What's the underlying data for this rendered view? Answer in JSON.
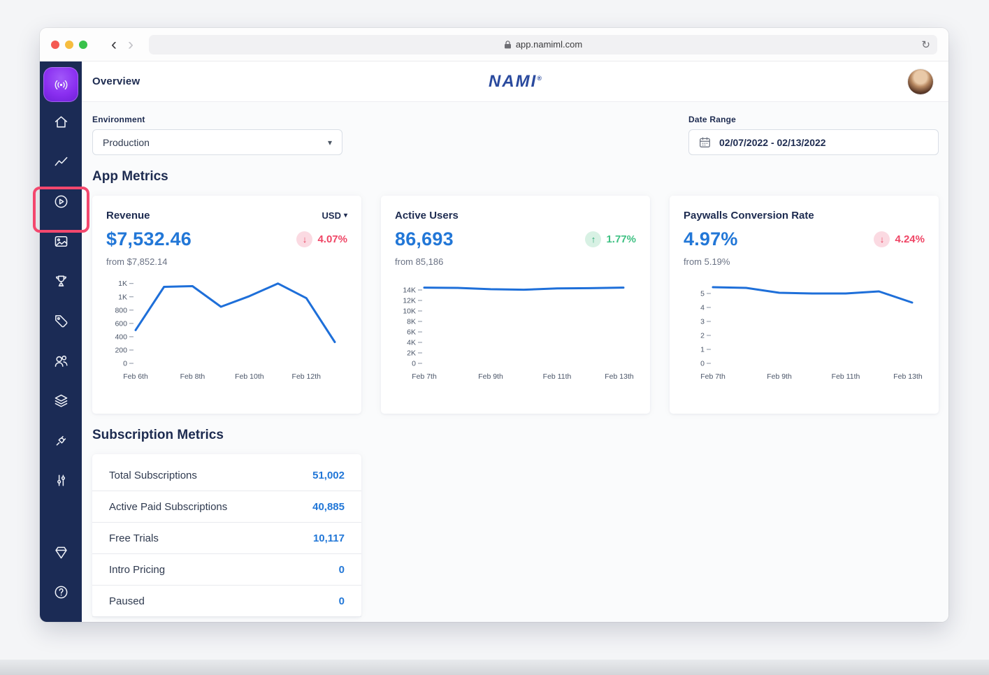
{
  "browser": {
    "url": "app.namiml.com"
  },
  "glyphs": {
    "back": "‹",
    "forward": "›",
    "reload": "↻",
    "caret": "▾",
    "down": "↓",
    "up": "↑"
  },
  "header": {
    "page_title": "Overview",
    "logo_text": "NAMI",
    "logo_reg": "®"
  },
  "filters": {
    "environment": {
      "label": "Environment",
      "value": "Production"
    },
    "date_range": {
      "label": "Date Range",
      "value": "02/07/2022  -  02/13/2022"
    }
  },
  "app_metrics": {
    "title": "App Metrics",
    "cards": [
      {
        "title": "Revenue",
        "currency": "USD",
        "value": "$7,532.46",
        "delta": "4.07%",
        "direction": "down",
        "baseline": "from $7,852.14"
      },
      {
        "title": "Active Users",
        "value": "86,693",
        "delta": "1.77%",
        "direction": "up",
        "baseline": "from 85,186"
      },
      {
        "title": "Paywalls Conversion Rate",
        "value": "4.97%",
        "delta": "4.24%",
        "direction": "down",
        "baseline": "from 5.19%"
      }
    ]
  },
  "subscription_metrics": {
    "title": "Subscription Metrics",
    "rows": [
      {
        "label": "Total Subscriptions",
        "value": "51,002"
      },
      {
        "label": "Active Paid Subscriptions",
        "value": "40,885"
      },
      {
        "label": "Free Trials",
        "value": "10,117"
      },
      {
        "label": "Intro Pricing",
        "value": "0"
      },
      {
        "label": "Paused",
        "value": "0"
      }
    ]
  },
  "sidebar": {
    "icons": [
      "app-logo-broadcast",
      "home",
      "analytics",
      "play-circle",
      "image",
      "trophy",
      "tag",
      "users",
      "layers",
      "plug",
      "sliders",
      "package",
      "help"
    ]
  },
  "colors": {
    "accent_blue": "#2277d7",
    "negative": "#ef4565",
    "positive": "#3fc183",
    "sidebar_navy": "#1b2b55",
    "annotation_pink": "#f3486e",
    "chart_line": "#1e6fd9",
    "logo_purple": "#8a2ff0"
  },
  "chart_data": [
    {
      "type": "line",
      "title": "Revenue (daily, USD)",
      "x": [
        "Feb 6th",
        "Feb 7th",
        "Feb 8th",
        "Feb 9th",
        "Feb 10th",
        "Feb 11th",
        "Feb 12th",
        "Feb 13th"
      ],
      "xlabels": [
        "Feb 6th",
        "",
        "Feb 8th",
        "",
        "Feb 10th",
        "",
        "Feb 12th",
        ""
      ],
      "values": [
        500,
        1150,
        1160,
        850,
        1010,
        1200,
        980,
        320
      ],
      "ymax": 1260,
      "ylim": [
        0,
        1260
      ],
      "yticks": [
        {
          "v": 0,
          "label": "0"
        },
        {
          "v": 200,
          "label": "200"
        },
        {
          "v": 400,
          "label": "400"
        },
        {
          "v": 600,
          "label": "600"
        },
        {
          "v": 800,
          "label": "800"
        },
        {
          "v": 1000,
          "label": "1K"
        },
        {
          "v": 1200,
          "label": "1K"
        }
      ],
      "legend": "none",
      "grid": false
    },
    {
      "type": "line",
      "title": "Active Users (daily)",
      "x": [
        "Feb 7th",
        "Feb 8th",
        "Feb 9th",
        "Feb 10th",
        "Feb 11th",
        "Feb 12th",
        "Feb 13th"
      ],
      "xlabels": [
        "Feb 7th",
        "",
        "Feb 9th",
        "",
        "Feb 11th",
        "",
        "Feb 13th"
      ],
      "values": [
        14450,
        14400,
        14150,
        14050,
        14300,
        14350,
        14450
      ],
      "ymax": 16000,
      "ylim": [
        0,
        16000
      ],
      "yticks": [
        {
          "v": 0,
          "label": "0"
        },
        {
          "v": 2000,
          "label": "2K"
        },
        {
          "v": 4000,
          "label": "4K"
        },
        {
          "v": 6000,
          "label": "6K"
        },
        {
          "v": 8000,
          "label": "8K"
        },
        {
          "v": 10000,
          "label": "10K"
        },
        {
          "v": 12000,
          "label": "12K"
        },
        {
          "v": 14000,
          "label": "14K"
        }
      ],
      "legend": "none",
      "grid": false
    },
    {
      "type": "line",
      "title": "Paywalls Conversion Rate (daily, %)",
      "x": [
        "Feb 7th",
        "Feb 8th",
        "Feb 9th",
        "Feb 10th",
        "Feb 11th",
        "Feb 12th",
        "Feb 13th"
      ],
      "xlabels": [
        "Feb 7th",
        "",
        "Feb 9th",
        "",
        "Feb 11th",
        "",
        "Feb 13th"
      ],
      "values": [
        5.45,
        5.4,
        5.05,
        5.0,
        5.0,
        5.15,
        4.35
      ],
      "ymax": 6,
      "ylim": [
        0,
        6
      ],
      "yticks": [
        {
          "v": 0,
          "label": "0"
        },
        {
          "v": 1,
          "label": "1"
        },
        {
          "v": 2,
          "label": "2"
        },
        {
          "v": 3,
          "label": "3"
        },
        {
          "v": 4,
          "label": "4"
        },
        {
          "v": 5,
          "label": "5"
        }
      ],
      "legend": "none",
      "grid": false
    }
  ]
}
